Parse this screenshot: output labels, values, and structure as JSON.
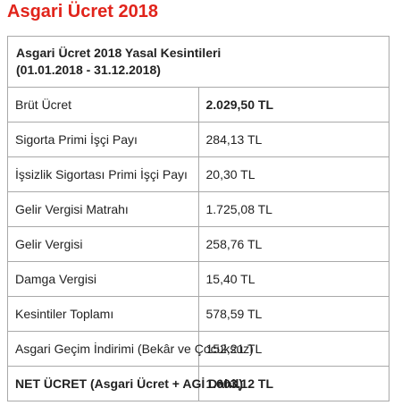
{
  "page": {
    "title": "Asgari Ücret 2018"
  },
  "table": {
    "header_line1": "Asgari Ücret 2018 Yasal Kesintileri",
    "header_line2": "(01.01.2018 - 31.12.2018)",
    "rows": [
      {
        "label": "Brüt Ücret",
        "value": "2.029,50 TL",
        "bold": false,
        "value_bold": true
      },
      {
        "label": "Sigorta Primi İşçi Payı",
        "value": "284,13 TL",
        "bold": false,
        "value_bold": false
      },
      {
        "label": "İşsizlik Sigortası Primi İşçi Payı",
        "value": "20,30 TL",
        "bold": false,
        "value_bold": false
      },
      {
        "label": "Gelir Vergisi Matrahı",
        "value": "1.725,08 TL",
        "bold": false,
        "value_bold": false
      },
      {
        "label": "Gelir Vergisi",
        "value": "258,76 TL",
        "bold": false,
        "value_bold": false
      },
      {
        "label": "Damga Vergisi",
        "value": "15,40 TL",
        "bold": false,
        "value_bold": false
      },
      {
        "label": "Kesintiler Toplamı",
        "value": "578,59 TL",
        "bold": false,
        "value_bold": false
      },
      {
        "label": "Asgari Geçim İndirimi (Bekâr ve Çocuksuz)",
        "value": "152,21 TL",
        "bold": false,
        "value_bold": false
      },
      {
        "label": "NET ÜCRET (Asgari Ücret + AGİ Dahil)",
        "value": "1.603,12 TL",
        "bold": true,
        "value_bold": true
      }
    ]
  },
  "colors": {
    "title": "#e1241b",
    "border": "#a9a9a9",
    "text": "#222222"
  }
}
